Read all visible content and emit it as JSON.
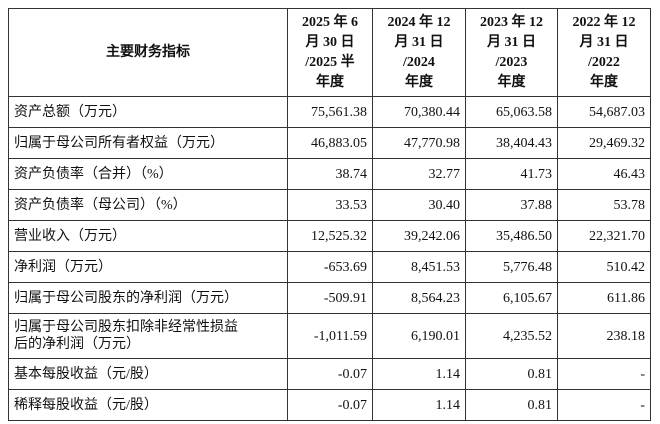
{
  "table": {
    "header": [
      [
        "主要财务指标"
      ],
      [
        "2025 年 6",
        "月 30 日",
        "/2025 半",
        "年度"
      ],
      [
        "2024 年 12",
        "月 31 日",
        "/2024",
        "年度"
      ],
      [
        "2023 年 12",
        "月 31 日",
        "/2023",
        "年度"
      ],
      [
        "2022 年 12",
        "月 31 日",
        "/2022",
        "年度"
      ]
    ],
    "rows": [
      [
        [
          "资产总额（万元）"
        ],
        "75,561.38",
        "70,380.44",
        "65,063.58",
        "54,687.03"
      ],
      [
        [
          "归属于母公司所有者权益（万元）"
        ],
        "46,883.05",
        "47,770.98",
        "38,404.43",
        "29,469.32"
      ],
      [
        [
          "资产负债率（合并）（%）"
        ],
        "38.74",
        "32.77",
        "41.73",
        "46.43"
      ],
      [
        [
          "资产负债率（母公司）（%）"
        ],
        "33.53",
        "30.40",
        "37.88",
        "53.78"
      ],
      [
        [
          "营业收入（万元）"
        ],
        "12,525.32",
        "39,242.06",
        "35,486.50",
        "22,321.70"
      ],
      [
        [
          "净利润（万元）"
        ],
        "-653.69",
        "8,451.53",
        "5,776.48",
        "510.42"
      ],
      [
        [
          "归属于母公司股东的净利润（万元）"
        ],
        "-509.91",
        "8,564.23",
        "6,105.67",
        "611.86"
      ],
      [
        [
          "归属于母公司股东扣除非经常性损益",
          "后的净利润（万元）"
        ],
        "-1,011.59",
        "6,190.01",
        "4,235.52",
        "238.18"
      ],
      [
        [
          "基本每股收益（元/股）"
        ],
        "-0.07",
        "1.14",
        "0.81",
        "-"
      ],
      [
        [
          "稀释每股收益（元/股）"
        ],
        "-0.07",
        "1.14",
        "0.81",
        "-"
      ]
    ]
  }
}
